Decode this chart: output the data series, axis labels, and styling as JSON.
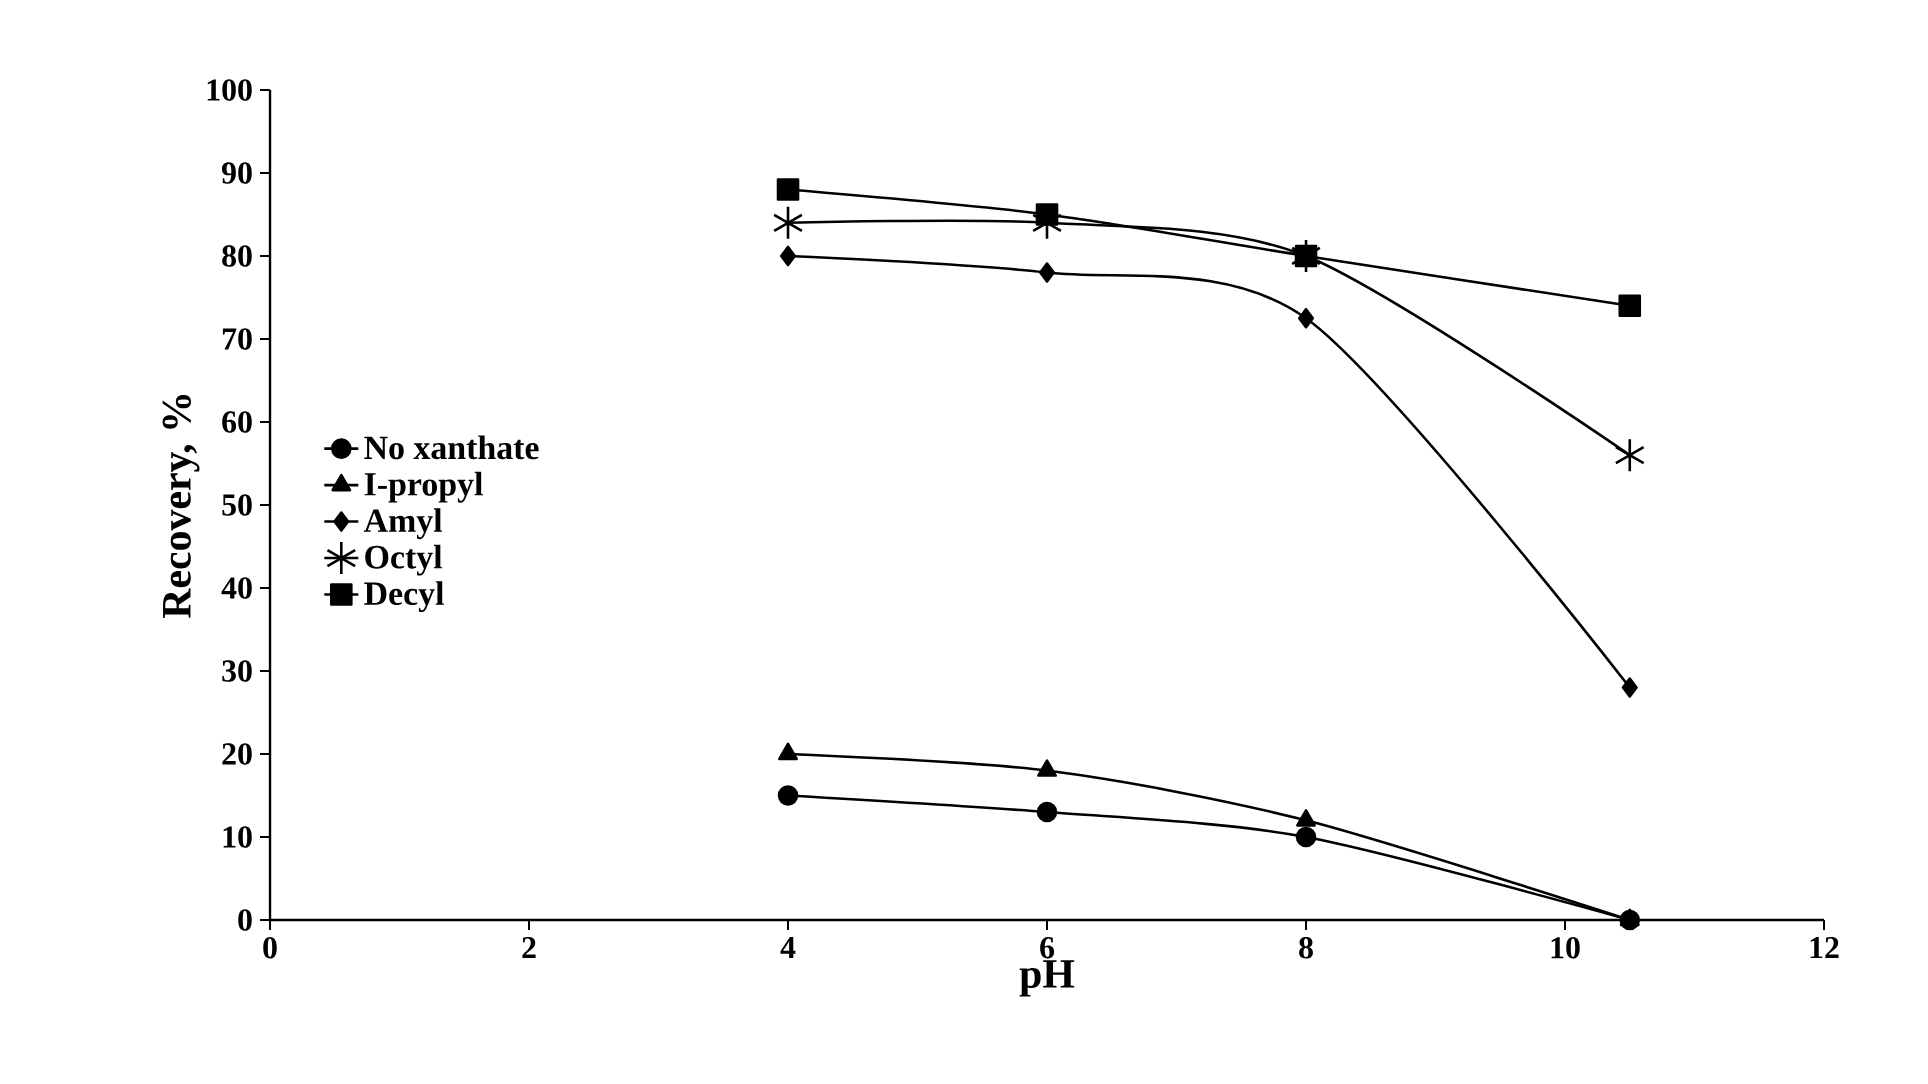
{
  "chart_data": {
    "type": "line",
    "xlabel": "pH",
    "ylabel": "Recovery, %",
    "xlim": [
      0,
      12
    ],
    "xticks": [
      0,
      2,
      4,
      6,
      8,
      10,
      12
    ],
    "ylim": [
      0,
      100
    ],
    "yticks": [
      0,
      10,
      20,
      30,
      40,
      50,
      60,
      70,
      80,
      90,
      100
    ],
    "grid": false,
    "legend": "left",
    "line_style": "solid",
    "x": [
      4,
      6,
      8,
      10.5
    ],
    "series": [
      {
        "name": "No xanthate",
        "color": "#000000",
        "marker": "circle",
        "values": [
          15,
          13,
          10,
          0
        ]
      },
      {
        "name": "I-propyl",
        "color": "#000000",
        "marker": "triangle",
        "values": [
          20,
          18,
          12,
          0
        ]
      },
      {
        "name": "Amyl",
        "color": "#000000",
        "marker": "diamond",
        "values": [
          80,
          78,
          72.5,
          28
        ]
      },
      {
        "name": "Octyl",
        "color": "#000000",
        "marker": "cross",
        "values": [
          84,
          84,
          80,
          56
        ]
      },
      {
        "name": "Decyl",
        "color": "#000000",
        "marker": "square",
        "values": [
          88,
          85,
          80,
          74
        ]
      }
    ]
  }
}
